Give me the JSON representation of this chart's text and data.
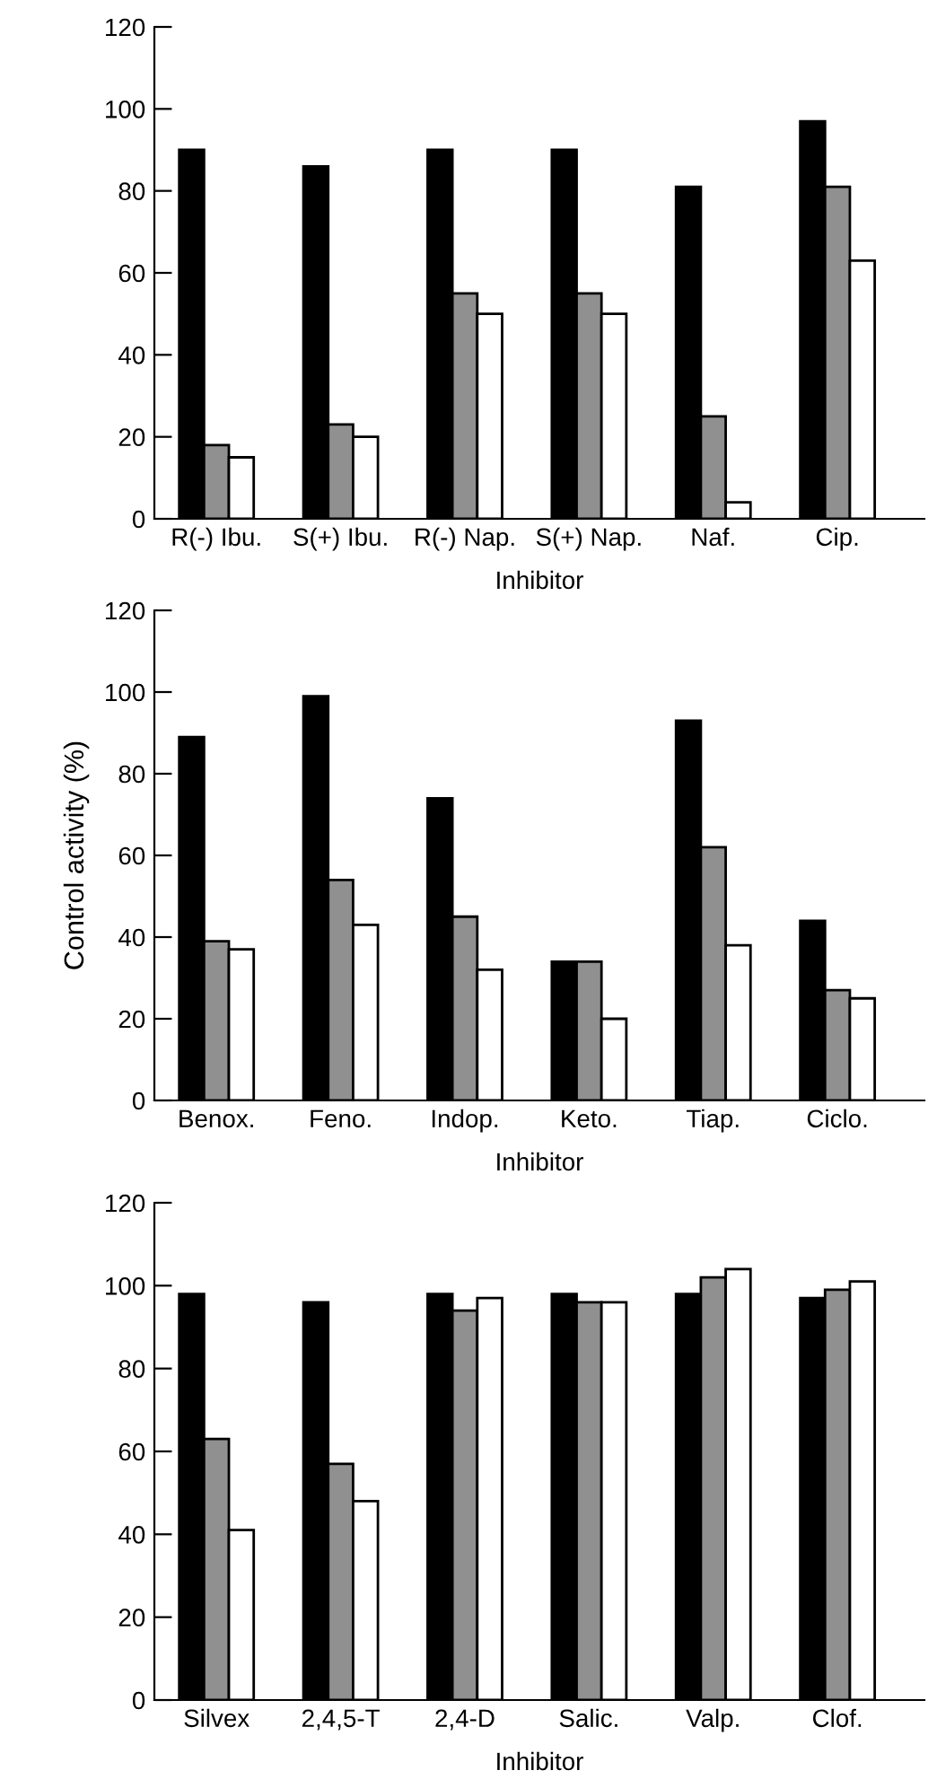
{
  "chart_data": [
    {
      "type": "bar",
      "xlabel": "Inhibitor",
      "categories": [
        "R(-) Ibu.",
        "S(+) Ibu.",
        "R(-) Nap.",
        "S(+) Nap.",
        "Naf.",
        "Cip."
      ],
      "ylim": [
        0,
        120
      ],
      "yticks": [
        0,
        20,
        40,
        60,
        80,
        100,
        120
      ],
      "grid": false,
      "series": [
        {
          "color": "#000000",
          "values": [
            90,
            86,
            90,
            90,
            81,
            97
          ]
        },
        {
          "color": "#909090",
          "values": [
            18,
            23,
            55,
            55,
            25,
            81
          ]
        },
        {
          "color": "#ffffff",
          "values": [
            15,
            20,
            50,
            50,
            4,
            63
          ]
        }
      ]
    },
    {
      "type": "bar",
      "xlabel": "Inhibitor",
      "ylabel": "Control activity (%)",
      "categories": [
        "Benox.",
        "Feno.",
        "Indop.",
        "Keto.",
        "Tiap.",
        "Ciclo."
      ],
      "ylim": [
        0,
        120
      ],
      "yticks": [
        0,
        20,
        40,
        60,
        80,
        100,
        120
      ],
      "grid": false,
      "series": [
        {
          "color": "#000000",
          "values": [
            89,
            99,
            74,
            34,
            93,
            44
          ]
        },
        {
          "color": "#909090",
          "values": [
            39,
            54,
            45,
            34,
            62,
            27
          ]
        },
        {
          "color": "#ffffff",
          "values": [
            37,
            43,
            32,
            20,
            38,
            25
          ]
        }
      ]
    },
    {
      "type": "bar",
      "xlabel": "Inhibitor",
      "categories": [
        "Silvex",
        "2,4,5-T",
        "2,4-D",
        "Salic.",
        "Valp.",
        "Clof."
      ],
      "ylim": [
        0,
        120
      ],
      "yticks": [
        0,
        20,
        40,
        60,
        80,
        100,
        120
      ],
      "grid": false,
      "series": [
        {
          "color": "#000000",
          "values": [
            98,
            96,
            98,
            98,
            98,
            97
          ]
        },
        {
          "color": "#909090",
          "values": [
            63,
            57,
            94,
            96,
            102,
            99
          ]
        },
        {
          "color": "#ffffff",
          "values": [
            41,
            48,
            97,
            96,
            104,
            101
          ]
        }
      ]
    }
  ]
}
